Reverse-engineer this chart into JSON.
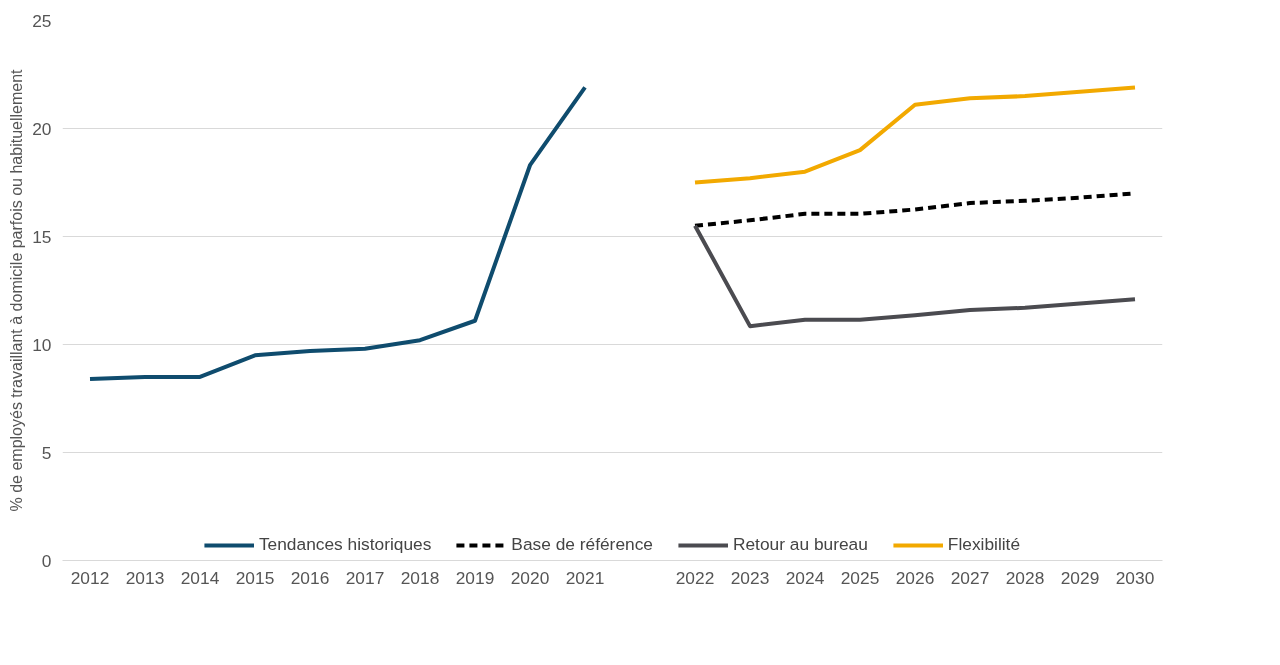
{
  "chart_data": {
    "type": "line",
    "ylabel": "% de employés travaillant à domicile parfois ou habituellement",
    "categories": [
      "2012",
      "2013",
      "2014",
      "2015",
      "2016",
      "2017",
      "2018",
      "2019",
      "2020",
      "2021",
      null,
      "2022",
      "2023",
      "2024",
      "2025",
      "2026",
      "2027",
      "2028",
      "2029",
      "2030"
    ],
    "ylim": [
      0,
      25
    ],
    "yticks": [
      0,
      5,
      10,
      15,
      20,
      25
    ],
    "grid": "y",
    "legend": "bottom",
    "marker": "none",
    "series": [
      {
        "name": "Tendances historiques",
        "color": "#0f4c6e",
        "line_style": "solid",
        "values": [
          8.4,
          8.5,
          8.5,
          9.5,
          9.7,
          9.8,
          10.2,
          11.1,
          18.3,
          21.9,
          null,
          null,
          null,
          null,
          null,
          null,
          null,
          null,
          null,
          null
        ]
      },
      {
        "name": "Base de référence",
        "color": "#000000",
        "line_style": "dashed",
        "values": [
          null,
          null,
          null,
          null,
          null,
          null,
          null,
          null,
          null,
          null,
          null,
          15.5,
          15.75,
          16.05,
          16.05,
          16.25,
          16.55,
          16.65,
          16.8,
          17.0
        ]
      },
      {
        "name": "Retour au bureau",
        "color": "#4b4b50",
        "line_style": "solid",
        "values": [
          null,
          null,
          null,
          null,
          null,
          null,
          null,
          null,
          null,
          null,
          null,
          15.5,
          10.85,
          11.15,
          11.15,
          11.35,
          11.6,
          11.7,
          11.9,
          12.1
        ]
      },
      {
        "name": "Flexibilité",
        "color": "#f2a900",
        "line_style": "solid",
        "values": [
          null,
          null,
          null,
          null,
          null,
          null,
          null,
          null,
          null,
          null,
          null,
          17.5,
          17.7,
          18.0,
          19.0,
          21.1,
          21.4,
          21.5,
          21.7,
          21.9
        ]
      }
    ]
  }
}
